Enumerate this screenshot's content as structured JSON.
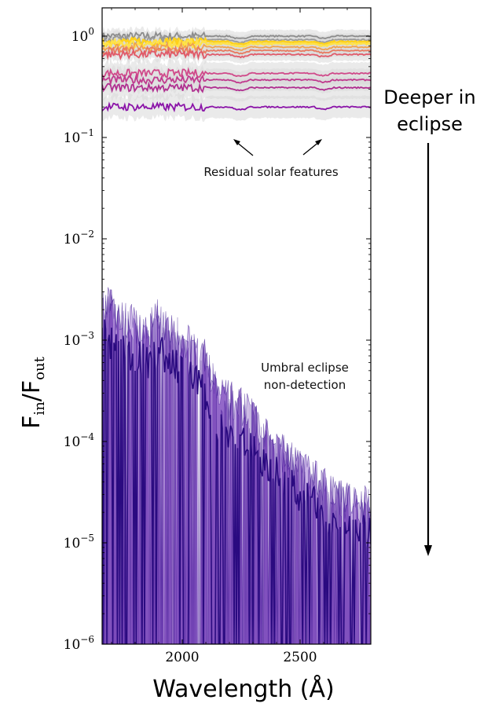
{
  "chart_data": {
    "type": "line",
    "xlabel": "Wavelength (Å)",
    "ylabel_main": "F",
    "ylabel_sub_in": "in",
    "ylabel_sep": "/F",
    "ylabel_sub_out": "out",
    "xlim": [
      1660,
      2800
    ],
    "ylim": [
      1e-06,
      1.6
    ],
    "yscale": "log",
    "x_ticks": [
      2000,
      2500
    ],
    "x_tick_labels": [
      "2000",
      "2500"
    ],
    "y_ticks": [
      {
        "value": 1,
        "base": "10",
        "exp": "0",
        "plain": "10⁰"
      },
      {
        "value": 0.1,
        "base": "10",
        "exp": "−1",
        "plain": "10⁻¹"
      },
      {
        "value": 0.01,
        "base": "10",
        "exp": "−2",
        "plain": "10⁻²"
      },
      {
        "value": 0.001,
        "base": "10",
        "exp": "−3",
        "plain": "10⁻³"
      },
      {
        "value": 0.0001,
        "base": "10",
        "exp": "−4",
        "plain": "10⁻⁴"
      },
      {
        "value": 1e-05,
        "base": "10",
        "exp": "−5",
        "plain": "10⁻⁵"
      },
      {
        "value": 1e-06,
        "base": "10",
        "exp": "−6",
        "plain": "10⁻⁶"
      }
    ],
    "partial_eclipse_series": [
      {
        "level": 1.0,
        "color": "#8c8c8c"
      },
      {
        "level": 0.92,
        "color": "#9a9a9a"
      },
      {
        "level": 0.88,
        "color": "#ffd21a"
      },
      {
        "level": 0.84,
        "color": "#ffe24a"
      },
      {
        "level": 0.78,
        "color": "#f0a050"
      },
      {
        "level": 0.72,
        "color": "#e87a60"
      },
      {
        "level": 0.66,
        "color": "#e05a6a"
      },
      {
        "level": 0.43,
        "color": "#d04a8a"
      },
      {
        "level": 0.37,
        "color": "#c03a8e"
      },
      {
        "level": 0.31,
        "color": "#b02f90"
      },
      {
        "level": 0.2,
        "color": "#8b14a8"
      }
    ],
    "umbral_envelope": {
      "x": [
        1660,
        1700,
        1750,
        1800,
        1850,
        1900,
        1950,
        2000,
        2050,
        2100,
        2150,
        2200,
        2250,
        2300,
        2350,
        2400,
        2450,
        2500,
        2550,
        2600,
        2650,
        2700,
        2750,
        2800
      ],
      "upper": [
        0.0027,
        0.0022,
        0.0018,
        0.0016,
        0.0013,
        0.0019,
        0.0013,
        0.0011,
        0.0009,
        0.0007,
        0.00035,
        0.00028,
        0.00025,
        0.00018,
        0.00012,
        9e-05,
        8e-05,
        6e-05,
        5e-05,
        4e-05,
        3e-05,
        2.8e-05,
        2.6e-05,
        2.5e-05
      ],
      "median": [
        0.0012,
        0.0009,
        0.0008,
        0.0007,
        0.0006,
        0.0008,
        0.0006,
        0.0005,
        0.0004,
        0.0003,
        0.00015,
        0.00012,
        0.0001,
        8e-05,
        6e-05,
        5e-05,
        4e-05,
        3e-05,
        2.5e-05,
        2e-05,
        1.6e-05,
        1.5e-05,
        1.3e-05,
        1.2e-05
      ],
      "lower": 1e-06
    },
    "annotations": {
      "residual": "Residual solar features",
      "umbral_line1": "Umbral eclipse",
      "umbral_line2": "non-detection",
      "deeper_line1": "Deeper in",
      "deeper_line2": "eclipse"
    },
    "colors": {
      "umbral": "#5a1fa6",
      "umbral_dark": "#2a0a80",
      "band": "#d9d9d9"
    },
    "grid": false,
    "legend": "none"
  }
}
